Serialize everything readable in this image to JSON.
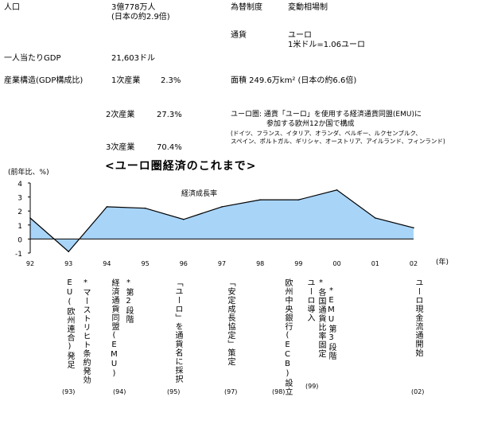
{
  "info": {
    "population_label": "人口",
    "population_value": "3億778万人",
    "population_note": "(日本の約2.9倍)",
    "fx_label": "為替制度",
    "fx_value": "変動相場制",
    "currency_label": "通貨",
    "currency_value": "ユーロ",
    "currency_rate": "1米ドル=1.06ユーロ",
    "gdp_pc_label": "一人当たりGDP",
    "gdp_pc_value": "21,603ドル",
    "industry_label": "産業構造(GDP構成比)",
    "industry_1_label": "1次産業",
    "industry_1_value": "2.3%",
    "industry_2_label": "2次産業",
    "industry_2_value": "27.3%",
    "industry_3_label": "3次産業",
    "industry_3_value": "70.4%",
    "area_text": "面積 249.6万km² (日本の約6.6倍)",
    "euro_area_line1": "ユーロ圏: 通貨「ユーロ」を使用する経済通貨同盟(EMU)に",
    "euro_area_line2": "参加する欧州12か国で構成",
    "euro_area_line3": "(ドイツ、フランス、イタリア、オランダ、ベルギー、ルクセンブルク、",
    "euro_area_line4": "スペイン、ポルトガル、ギリシャ、オーストリア、アイルランド、フィンランド)"
  },
  "chart_data": {
    "type": "area",
    "title": "<ユーロ圏経済のこれまで>",
    "ylabel": "(前年比、%)",
    "xlabel": "(年)",
    "series": [
      {
        "name": "経済成長率",
        "x": [
          "92",
          "93",
          "94",
          "95",
          "96",
          "97",
          "98",
          "99",
          "00",
          "01",
          "02"
        ],
        "values": [
          1.5,
          -0.9,
          2.3,
          2.2,
          1.4,
          2.3,
          2.8,
          2.8,
          3.5,
          1.5,
          0.8
        ]
      }
    ],
    "ylim": [
      -1,
      4
    ],
    "yticks": [
      "-1",
      "0",
      "1",
      "2",
      "3",
      "4"
    ],
    "xticks": [
      "92",
      "93",
      "94",
      "95",
      "96",
      "97",
      "98",
      "99",
      "00",
      "01",
      "02"
    ],
    "fill_color": "#a8d4f8",
    "line_color": "#000000"
  },
  "events": [
    {
      "text": "EU(欧州連合)発足",
      "star": "*マーストリヒト条約発効",
      "year": "(93)"
    },
    {
      "text": "経済通貨同盟(EMU)",
      "star": "*第2段階",
      "year": "(94)"
    },
    {
      "text": "「ユーロ」を通貨名に採択",
      "star": "",
      "year": "(95)"
    },
    {
      "text": "「安定成長協定」策定",
      "star": "",
      "year": "(97)"
    },
    {
      "text": "欧州中央銀行(ECB)設立",
      "star": "",
      "year": "(98)"
    },
    {
      "text": "ユーロ導入",
      "star": "*各国通貨比率固定",
      "star2": "*EMU第3段階",
      "year": "(99)"
    },
    {
      "text": "ユーロ現金流通開始",
      "star": "",
      "year": "(02)"
    }
  ]
}
